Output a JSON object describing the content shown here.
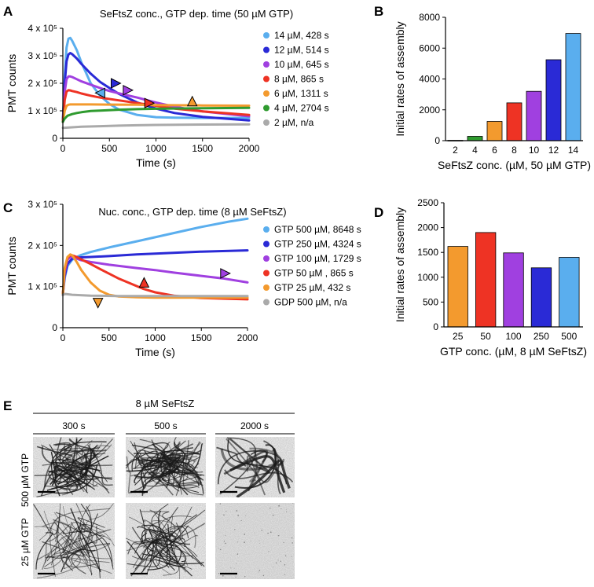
{
  "panels": {
    "A": "A",
    "B": "B",
    "C": "C",
    "D": "D",
    "E": "E"
  },
  "colors": {
    "c14": "#5aaeee",
    "c12": "#2a2ad6",
    "c10": "#a040e0",
    "c8": "#ee3324",
    "c6": "#f39a2e",
    "c4": "#2f9b2f",
    "c2": "#aaaaaa",
    "gtp500": "#5aaeee",
    "gtp250": "#2a2ad6",
    "gtp100": "#a040e0",
    "gtp50": "#ee3324",
    "gtp25": "#f39a2e",
    "gdp500": "#aaaaaa"
  },
  "chart_data": [
    {
      "id": "A",
      "type": "line",
      "title": "SeFtsZ conc., GTP dep. time (50 µM GTP)",
      "xlabel": "Time (s)",
      "ylabel": "PMT counts",
      "xlim": [
        0,
        2000
      ],
      "ylim": [
        0,
        400000
      ],
      "xticks": [
        "0",
        "500",
        "1000",
        "1500",
        "2000"
      ],
      "yticks": [
        "0",
        "1 x 10⁵",
        "2 x 10⁵",
        "3 x 10⁵",
        "4 x 10⁵"
      ],
      "series": [
        {
          "name": "14 µM, 428 s",
          "color": "#5aaeee",
          "x": [
            0,
            20,
            40,
            60,
            80,
            100,
            150,
            200,
            300,
            400,
            500,
            600,
            800,
            1000,
            1200,
            1500,
            2000
          ],
          "y": [
            60000,
            230000,
            330000,
            362000,
            365000,
            355000,
            320000,
            275000,
            200000,
            155000,
            125000,
            105000,
            85000,
            77000,
            75000,
            74000,
            74000
          ]
        },
        {
          "name": "12 µM, 514 s",
          "color": "#2a2ad6",
          "x": [
            0,
            20,
            40,
            60,
            80,
            100,
            150,
            200,
            300,
            400,
            514,
            600,
            800,
            1000,
            1200,
            1500,
            2000
          ],
          "y": [
            60000,
            200000,
            280000,
            305000,
            310000,
            306000,
            290000,
            270000,
            235000,
            205000,
            180000,
            162000,
            130000,
            108000,
            92000,
            78000,
            65000
          ]
        },
        {
          "name": "10 µM, 645 s",
          "color": "#a040e0",
          "x": [
            0,
            20,
            40,
            60,
            80,
            100,
            150,
            200,
            300,
            400,
            500,
            645,
            800,
            1000,
            1200,
            1500,
            2000
          ],
          "y": [
            60000,
            170000,
            215000,
            225000,
            225000,
            223000,
            215000,
            207000,
            195000,
            183000,
            172000,
            160000,
            148000,
            130000,
            115000,
            98000,
            80000
          ]
        },
        {
          "name": "8 µM, 865 s",
          "color": "#ee3324",
          "x": [
            0,
            20,
            40,
            60,
            80,
            100,
            150,
            200,
            300,
            400,
            600,
            865,
            1000,
            1200,
            1500,
            2000
          ],
          "y": [
            60000,
            140000,
            170000,
            175000,
            174000,
            172000,
            168000,
            163000,
            155000,
            148000,
            138000,
            125000,
            118000,
            108000,
            98000,
            85000
          ]
        },
        {
          "name": "6 µM, 1311 s",
          "color": "#f39a2e",
          "x": [
            0,
            20,
            40,
            60,
            80,
            100,
            150,
            200,
            300,
            500,
            800,
            1000,
            1311,
            1500,
            2000
          ],
          "y": [
            60000,
            100000,
            118000,
            122000,
            123000,
            123000,
            123000,
            123000,
            123000,
            122500,
            122000,
            121000,
            120000,
            119500,
            118500
          ]
        },
        {
          "name": "4 µM, 2704 s",
          "color": "#2f9b2f",
          "x": [
            0,
            20,
            50,
            100,
            150,
            200,
            300,
            400,
            600,
            800,
            1000,
            1500,
            2000
          ],
          "y": [
            60000,
            72000,
            82000,
            88000,
            92000,
            95000,
            99000,
            101000,
            104000,
            106000,
            107500,
            109500,
            110500
          ]
        },
        {
          "name": "2 µM, n/a",
          "color": "#aaaaaa",
          "x": [
            0,
            100,
            200,
            400,
            600,
            800,
            1000,
            1500,
            2000
          ],
          "y": [
            38000,
            40000,
            42000,
            44000,
            46000,
            47500,
            48500,
            50000,
            51000
          ]
        }
      ],
      "markers": [
        {
          "color": "#5aaeee",
          "x": 400,
          "y": 165000,
          "dir": "left"
        },
        {
          "color": "#2a2ad6",
          "x": 570,
          "y": 200000,
          "dir": "right"
        },
        {
          "color": "#a040e0",
          "x": 700,
          "y": 175000,
          "dir": "right"
        },
        {
          "color": "#ee3324",
          "x": 930,
          "y": 128000,
          "dir": "right"
        },
        {
          "color": "#f39a2e",
          "x": 1390,
          "y": 135000,
          "dir": "up"
        }
      ]
    },
    {
      "id": "B",
      "type": "bar",
      "xlabel": "SeFtsZ conc. (µM, 50 µM GTP)",
      "ylabel": "Initial rates of assembly",
      "ylim": [
        0,
        8000
      ],
      "yticks": [
        "0",
        "2000",
        "4000",
        "6000",
        "8000"
      ],
      "categories": [
        "2",
        "4",
        "6",
        "8",
        "10",
        "12",
        "14"
      ],
      "values": [
        20,
        280,
        1250,
        2450,
        3200,
        5250,
        6950
      ],
      "colors": [
        "#aaaaaa",
        "#2f9b2f",
        "#f39a2e",
        "#ee3324",
        "#a040e0",
        "#2a2ad6",
        "#5aaeee"
      ]
    },
    {
      "id": "C",
      "type": "line",
      "title": "Nuc. conc., GTP dep. time (8 µM SeFtsZ)",
      "xlabel": "Time (s)",
      "ylabel": "PMT counts",
      "xlim": [
        0,
        2000
      ],
      "ylim": [
        0,
        300000
      ],
      "xticks": [
        "0",
        "500",
        "1000",
        "1500",
        "2000"
      ],
      "yticks": [
        "0",
        "1 x 10⁵",
        "2 x 10⁵",
        "3 x 10⁵"
      ],
      "series": [
        {
          "name": "GTP 500 µM, 8648 s",
          "color": "#5aaeee",
          "x": [
            0,
            20,
            50,
            100,
            150,
            200,
            300,
            500,
            800,
            1000,
            1200,
            1500,
            1800,
            2000
          ],
          "y": [
            80000,
            120000,
            150000,
            165000,
            172000,
            177000,
            184000,
            195000,
            210000,
            220000,
            230000,
            245000,
            258000,
            265000
          ]
        },
        {
          "name": "GTP 250 µM, 4324 s",
          "color": "#2a2ad6",
          "x": [
            0,
            20,
            50,
            100,
            150,
            200,
            300,
            500,
            800,
            1000,
            1500,
            2000
          ],
          "y": [
            80000,
            125000,
            155000,
            168000,
            170000,
            171000,
            172000,
            174000,
            178000,
            180000,
            185000,
            188000
          ]
        },
        {
          "name": "GTP 100 µM, 1729 s",
          "color": "#a040e0",
          "x": [
            0,
            20,
            50,
            80,
            100,
            150,
            200,
            300,
            500,
            800,
            1000,
            1200,
            1500,
            1729,
            2000
          ],
          "y": [
            80000,
            135000,
            165000,
            172000,
            172000,
            168000,
            164000,
            160000,
            153000,
            145000,
            140000,
            134000,
            126000,
            120000,
            110000
          ]
        },
        {
          "name": "GTP 50 µM , 865 s",
          "color": "#ee3324",
          "x": [
            0,
            20,
            50,
            80,
            100,
            150,
            200,
            300,
            400,
            600,
            865,
            1000,
            1200,
            1500,
            2000
          ],
          "y": [
            80000,
            140000,
            170000,
            176000,
            176000,
            172000,
            166000,
            155000,
            143000,
            120000,
            95000,
            86000,
            78000,
            72000,
            69000
          ]
        },
        {
          "name": "GTP 25 µM, 432 s",
          "color": "#f39a2e",
          "x": [
            0,
            20,
            50,
            80,
            100,
            150,
            200,
            300,
            400,
            500,
            600,
            800,
            1000,
            1500,
            2000
          ],
          "y": [
            80000,
            145000,
            172000,
            178000,
            176000,
            160000,
            140000,
            110000,
            90000,
            80000,
            76000,
            74000,
            73000,
            73000,
            73000
          ]
        },
        {
          "name": "GDP 500 µM, n/a",
          "color": "#aaaaaa",
          "x": [
            0,
            30,
            100,
            300,
            600,
            1000,
            1500,
            2000
          ],
          "y": [
            80000,
            82000,
            80000,
            78000,
            77000,
            77000,
            77000,
            77000
          ]
        }
      ],
      "markers": [
        {
          "color": "#f39a2e",
          "x": 380,
          "y": 60000,
          "dir": "down"
        },
        {
          "color": "#ee3324",
          "x": 880,
          "y": 110000,
          "dir": "up"
        },
        {
          "color": "#a040e0",
          "x": 1760,
          "y": 132000,
          "dir": "right"
        }
      ]
    },
    {
      "id": "D",
      "type": "bar",
      "xlabel": "GTP conc. (µM, 8 µM SeFtsZ)",
      "ylabel": "Initial rates of assembly",
      "ylim": [
        0,
        2500
      ],
      "yticks": [
        "0",
        "500",
        "1000",
        "1500",
        "2000",
        "2500"
      ],
      "categories": [
        "25",
        "50",
        "100",
        "250",
        "500"
      ],
      "values": [
        1620,
        1900,
        1490,
        1190,
        1400
      ],
      "colors": [
        "#f39a2e",
        "#ee3324",
        "#a040e0",
        "#2a2ad6",
        "#5aaeee"
      ]
    }
  ],
  "micrographs": {
    "header": "8 µM SeFtsZ",
    "columns": [
      "300 s",
      "500 s",
      "2000 s"
    ],
    "rows": [
      "500 µM GTP",
      "25 µM GTP"
    ]
  }
}
